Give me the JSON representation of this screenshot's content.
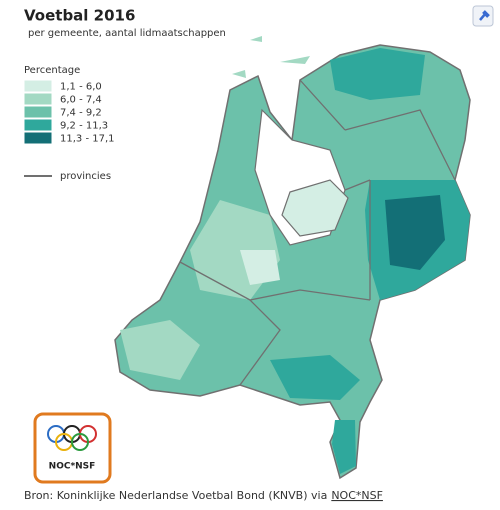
{
  "header": {
    "title": "Voetbal 2016",
    "subtitle": "per gemeente, aantal lidmaatschappen"
  },
  "legend": {
    "title": "Percentage",
    "items": [
      {
        "label": "1,1 -  6,0",
        "color": "#d4eee4"
      },
      {
        "label": "6,0 -  7,4",
        "color": "#a3d9c3"
      },
      {
        "label": "7,4 -  9,2",
        "color": "#6cc1aa"
      },
      {
        "label": "9,2 - 11,3",
        "color": "#2fa89c"
      },
      {
        "label": "11,3 - 17,1",
        "color": "#136f76"
      }
    ],
    "provinces": {
      "label": "provincies",
      "color": "#707070"
    }
  },
  "logo": {
    "label": "NOC*NSF"
  },
  "source": {
    "text": "Bron: Koninklijke Nederlandse Voetbal Bond (KNVB) via",
    "link": "NOC*NSF"
  }
}
